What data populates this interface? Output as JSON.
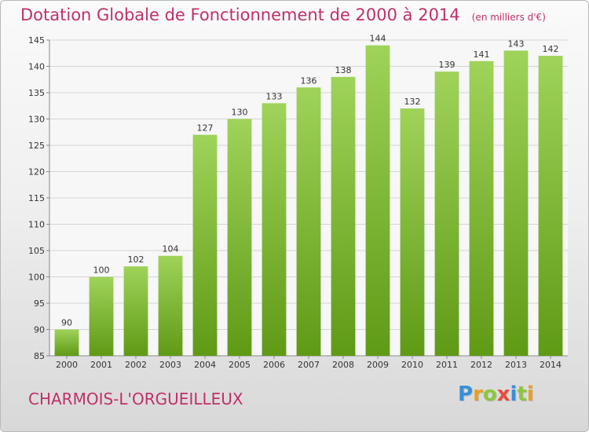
{
  "title": "Dotation Globale de Fonctionnement de 2000 à 2014",
  "subtitle": "(en milliers d'€)",
  "commune": "CHARMOIS-L'ORGUEILLEUX",
  "logo": {
    "text": "Proxiti",
    "letters": [
      {
        "char": "P",
        "color": "#3a8fd6"
      },
      {
        "char": "r",
        "color": "#e8a020"
      },
      {
        "char": "o",
        "color": "#8cc63f"
      },
      {
        "char": "x",
        "color": "#e84c3d"
      },
      {
        "char": "i",
        "color": "#3a8fd6"
      },
      {
        "char": "t",
        "color": "#8cc63f"
      },
      {
        "char": "i",
        "color": "#e8a020"
      }
    ]
  },
  "colors": {
    "accent": "#c0306a",
    "bar_top": "#9fd35a",
    "bar_bottom": "#5f9a15",
    "grid": "#d4d4d4",
    "axis_text": "#333333"
  },
  "chart_data": {
    "type": "bar",
    "categories": [
      "2000",
      "2001",
      "2002",
      "2003",
      "2004",
      "2005",
      "2006",
      "2007",
      "2008",
      "2009",
      "2010",
      "2011",
      "2012",
      "2013",
      "2014"
    ],
    "values": [
      90,
      100,
      102,
      104,
      127,
      130,
      133,
      136,
      138,
      144,
      132,
      139,
      141,
      143,
      142
    ],
    "ylim": [
      85,
      145
    ],
    "yticks": [
      85,
      90,
      95,
      100,
      105,
      110,
      115,
      120,
      125,
      130,
      135,
      140,
      145
    ],
    "grid": true,
    "data_labels": true
  }
}
